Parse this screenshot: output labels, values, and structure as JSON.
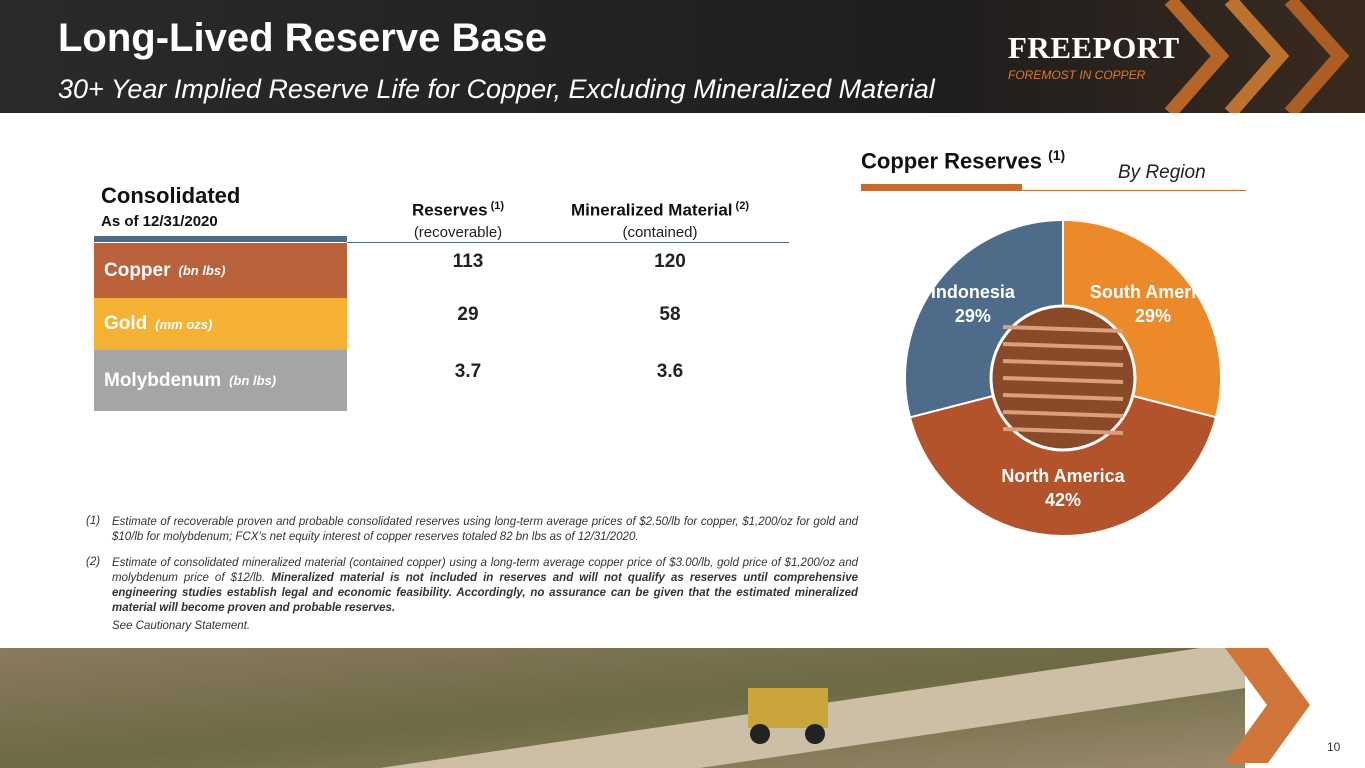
{
  "header": {
    "title": "Long-Lived Reserve Base",
    "subtitle": "30+ Year Implied Reserve Life for Copper, Excluding Mineralized Material"
  },
  "logo": {
    "name": "FREEPORT",
    "tagline": "FOREMOST IN COPPER"
  },
  "table": {
    "title": "Consolidated",
    "date": "As of 12/31/2020",
    "columns": [
      {
        "name": "Reserves",
        "note": "(1)",
        "sub": "(recoverable)"
      },
      {
        "name": "Mineralized Material",
        "note": "(2)",
        "sub": "(contained)"
      }
    ],
    "rows": [
      {
        "name": "Copper",
        "unit": "(bn lbs)",
        "color": "#b9623c",
        "values": [
          113,
          120
        ]
      },
      {
        "name": "Gold",
        "unit": "(mm ozs)",
        "color": "#f5b133",
        "values": [
          29,
          58
        ]
      },
      {
        "name": "Molybdenum",
        "unit": "(bn lbs)",
        "color": "#a5a5a7",
        "values": [
          3.7,
          3.6
        ]
      }
    ]
  },
  "footnotes": [
    {
      "marker": "(1)",
      "text": "Estimate of recoverable proven and probable consolidated reserves using long-term average prices of $2.50/lb for copper, $1,200/oz for gold and $10/lb for molybdenum; FCX’s net equity interest of copper reserves totaled 82 bn lbs as of 12/31/2020.",
      "bold": ""
    },
    {
      "marker": "(2)",
      "text": "Estimate of consolidated mineralized material (contained copper) using a long-term average copper price of $3.00/lb, gold price of $1,200/oz and molybdenum price of $12/lb. ",
      "bold": "Mineralized material is not included in reserves and will not qualify as reserves until comprehensive engineering studies establish legal and economic feasibility. Accordingly, no assurance can be given that the estimated mineralized material will become proven and probable reserves."
    }
  ],
  "cautionary": "See Cautionary Statement.",
  "chart_data": {
    "type": "pie",
    "title": "Copper Reserves",
    "title_note": "(1)",
    "subtitle": "By Region",
    "categories": [
      "South America",
      "North America",
      "Indonesia"
    ],
    "values": [
      29,
      42,
      29
    ],
    "value_labels": [
      "29%",
      "42%",
      "29%"
    ],
    "colors": [
      "#ec8a2b",
      "#b2532b",
      "#4e6b8a"
    ]
  },
  "page_number": "10"
}
